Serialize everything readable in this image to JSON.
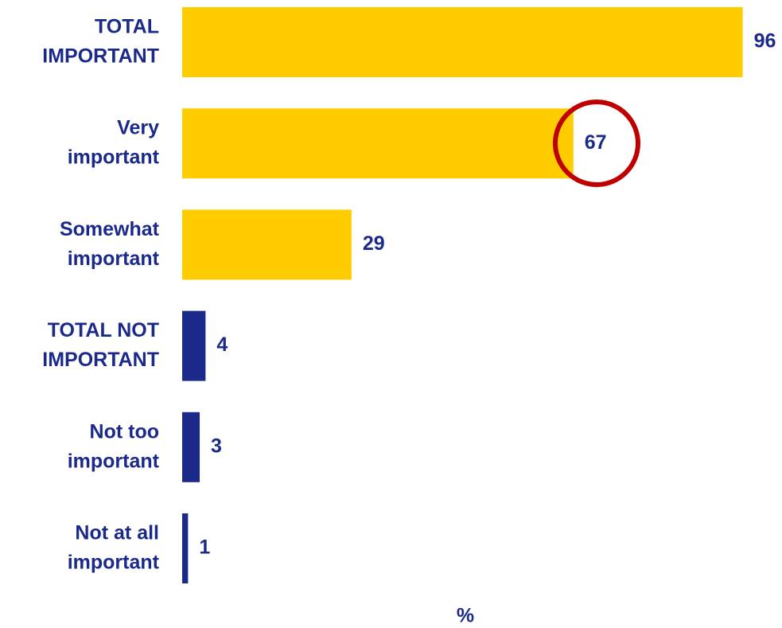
{
  "chart_data": {
    "type": "bar",
    "orientation": "horizontal",
    "categories": [
      "TOTAL\nIMPORTANT",
      "Very\nimportant",
      "Somewhat\nimportant",
      "TOTAL NOT\nIMPORTANT",
      "Not too\nimportant",
      "Not at all\nimportant"
    ],
    "values": [
      96,
      67,
      29,
      4,
      3,
      1
    ],
    "colors": [
      "#ffcc00",
      "#ffcc00",
      "#ffcc00",
      "#1b2a8a",
      "#1b2a8a",
      "#1b2a8a"
    ],
    "xlim": [
      0,
      100
    ],
    "x_label": "%"
  }
}
